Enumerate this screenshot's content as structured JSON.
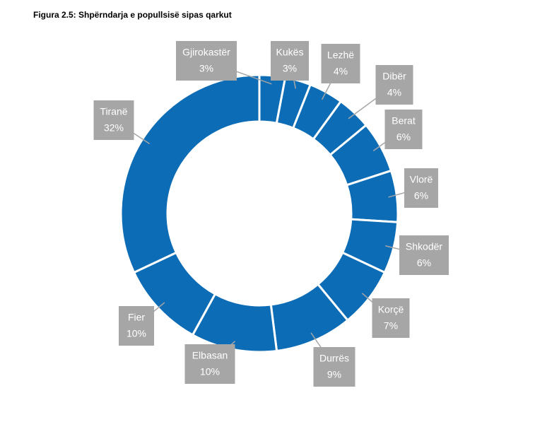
{
  "chart_data": {
    "type": "donut",
    "title": "Figura 2.5: Shpërndarja e popullsisë sipas qarkut",
    "categories": [
      "Gjirokastër",
      "Kukës",
      "Lezhë",
      "Dibër",
      "Berat",
      "Vlorë",
      "Shkodër",
      "Korçë",
      "Durrës",
      "Elbasan",
      "Fier",
      "Tiranë"
    ],
    "values": [
      3,
      3,
      4,
      4,
      6,
      6,
      6,
      7,
      9,
      10,
      10,
      32
    ],
    "value_labels": [
      "3%",
      "3%",
      "4%",
      "4%",
      "6%",
      "6%",
      "6%",
      "7%",
      "9%",
      "10%",
      "10%",
      "32%"
    ],
    "color": "#0d6cb6",
    "label_color": "#a6a6a6"
  }
}
